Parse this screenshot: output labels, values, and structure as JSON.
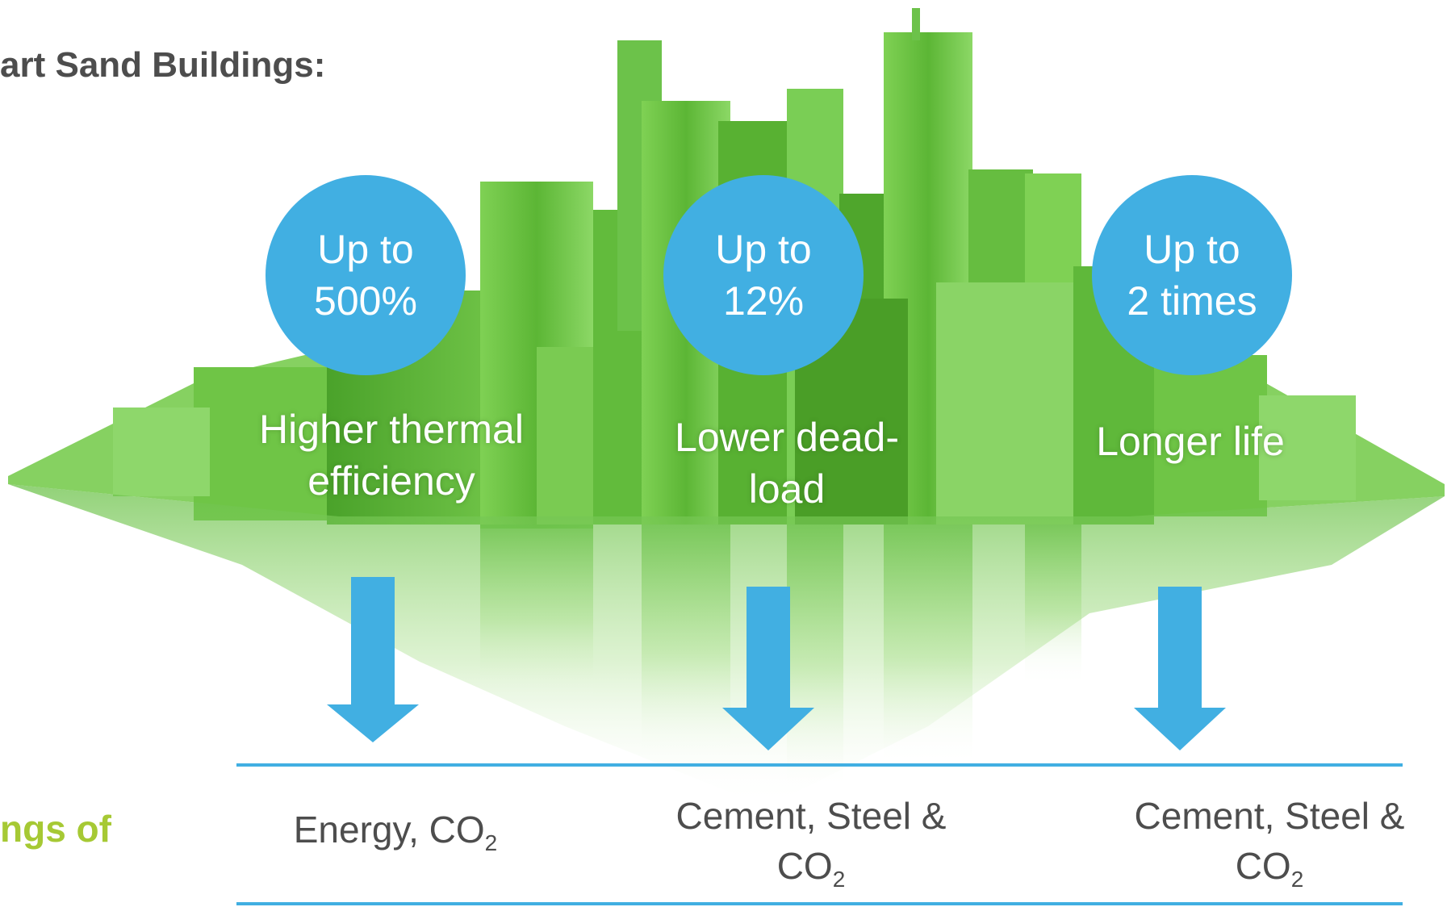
{
  "title": "art Sand Buildings:",
  "savings_label": "ngs of",
  "colors": {
    "bubble": "#41afe2",
    "arrow": "#41afe2",
    "rule": "#41afe2",
    "title": "#4d4d4d",
    "savings_label": "#a6c934",
    "building_green": "#6cc24a"
  },
  "benefits": [
    {
      "bubble_line1": "Up to",
      "bubble_line2": "500%",
      "label_line1": "Higher thermal",
      "label_line2": "efficiency",
      "saving_line1": "Energy, CO",
      "saving_sub": "2",
      "saving_line2": ""
    },
    {
      "bubble_line1": "Up to",
      "bubble_line2": "12%",
      "label_line1": "Lower dead-",
      "label_line2": "load",
      "saving_line1": "Cement, Steel &",
      "saving_line2": "CO",
      "saving_sub": "2"
    },
    {
      "bubble_line1": "Up to",
      "bubble_line2": "2 times",
      "label_line1": "Longer life",
      "label_line2": "",
      "saving_line1": "Cement, Steel &",
      "saving_line2": "CO",
      "saving_sub": "2"
    }
  ]
}
